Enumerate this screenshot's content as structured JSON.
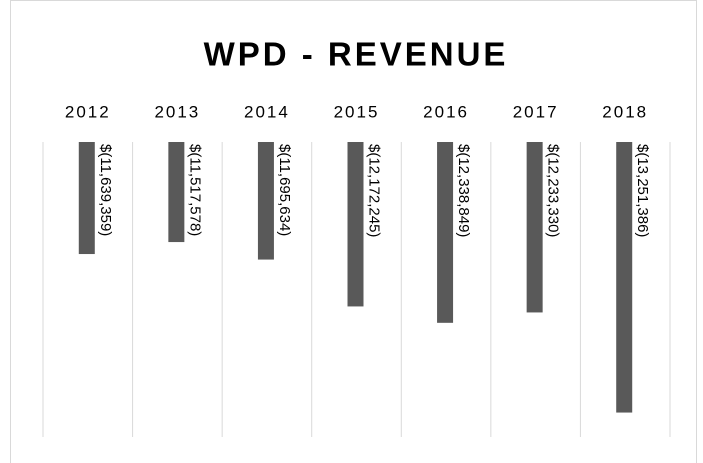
{
  "chart_data": {
    "type": "bar",
    "title": "WPD - REVENUE",
    "categories": [
      "2012",
      "2013",
      "2014",
      "2015",
      "2016",
      "2017",
      "2018"
    ],
    "values": [
      -11639359,
      -11517578,
      -11695634,
      -12172245,
      -12338849,
      -12233330,
      -13251386
    ],
    "value_labels": [
      "$(11,639,359)",
      "$(11,517,578)",
      "$(11,695,634)",
      "$(12,172,245)",
      "$(12,338,849)",
      "$(12,233,330)",
      "$(13,251,386)"
    ],
    "color": "#595959",
    "ylim": [
      -13500000,
      -10500000
    ]
  }
}
